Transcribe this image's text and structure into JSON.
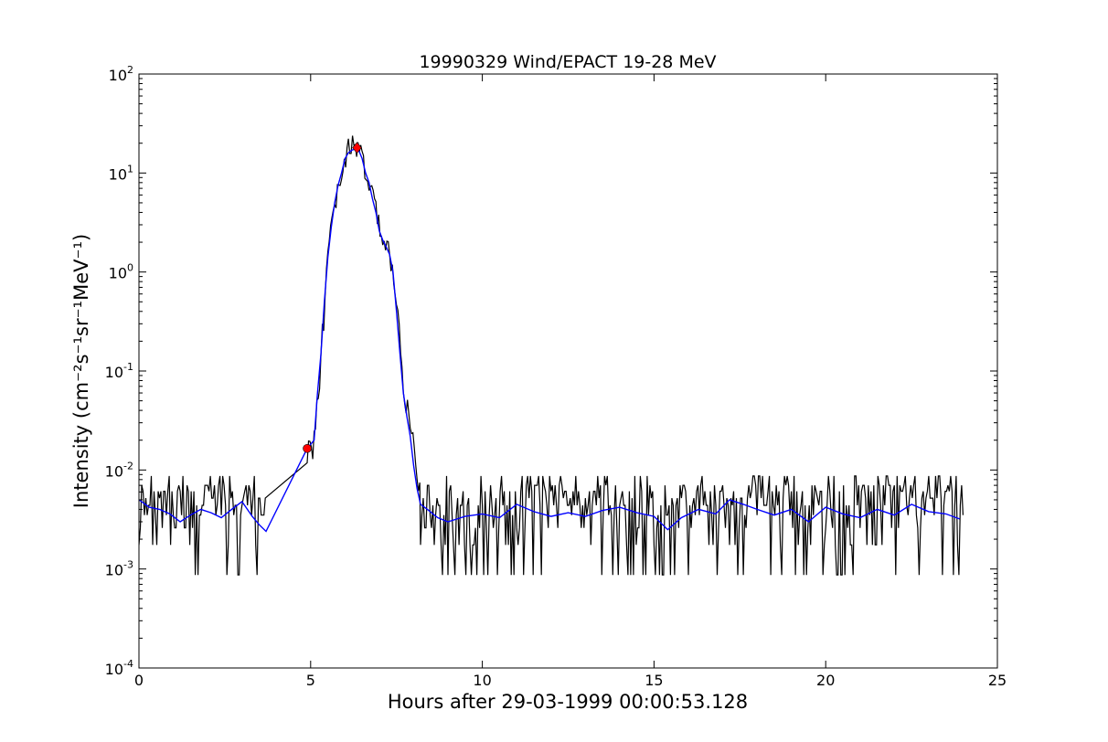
{
  "chart_data": {
    "type": "line",
    "title": "19990329 Wind/EPACT 19-28 MeV",
    "xlabel": "Hours after 29-03-1999 00:00:53.128",
    "ylabel": "Intensity (cm⁻²s⁻¹sr⁻¹MeV⁻¹)",
    "xlim": [
      0,
      25
    ],
    "ylim": [
      0.0001,
      100
    ],
    "yscale": "log",
    "grid": false,
    "x_ticks": [
      0,
      5,
      10,
      15,
      20,
      25
    ],
    "x_tick_labels": [
      "0",
      "5",
      "10",
      "15",
      "20",
      "25"
    ],
    "y_ticks": [
      0.0001,
      0.001,
      0.01,
      0.1,
      1,
      10,
      100
    ],
    "y_tick_labels": [
      {
        "base": "10",
        "exp": "-4"
      },
      {
        "base": "10",
        "exp": "-3"
      },
      {
        "base": "10",
        "exp": "-2"
      },
      {
        "base": "10",
        "exp": "-1"
      },
      {
        "base": "10",
        "exp": "0"
      },
      {
        "base": "10",
        "exp": "1"
      },
      {
        "base": "10",
        "exp": "2"
      }
    ],
    "series": [
      {
        "color": "#000000",
        "style": "raw",
        "x_range": [
          0,
          24
        ],
        "peak_envelope": [
          [
            0.0,
            0.005
          ],
          [
            1.0,
            0.004
          ],
          [
            2.0,
            0.0038
          ],
          [
            3.0,
            0.0045
          ],
          [
            3.7,
            0.0025
          ],
          [
            4.9,
            0.017
          ],
          [
            5.1,
            0.02
          ],
          [
            5.3,
            0.15
          ],
          [
            5.5,
            1.5
          ],
          [
            5.7,
            5
          ],
          [
            5.9,
            10
          ],
          [
            6.1,
            18
          ],
          [
            6.3,
            20
          ],
          [
            6.5,
            15
          ],
          [
            6.7,
            8
          ],
          [
            7.0,
            3
          ],
          [
            7.3,
            1.5
          ],
          [
            7.5,
            0.5
          ],
          [
            7.7,
            0.08
          ],
          [
            7.9,
            0.03
          ],
          [
            8.1,
            0.008
          ],
          [
            8.5,
            0.0035
          ],
          [
            10,
            0.0038
          ],
          [
            15,
            0.0036
          ],
          [
            17,
            0.0045
          ],
          [
            20,
            0.0038
          ],
          [
            24,
            0.0035
          ]
        ]
      },
      {
        "color": "#0000ff",
        "style": "smoothed",
        "points": [
          [
            0.0,
            0.005
          ],
          [
            0.3,
            0.0042
          ],
          [
            0.6,
            0.004
          ],
          [
            0.9,
            0.0036
          ],
          [
            1.2,
            0.003
          ],
          [
            1.5,
            0.0035
          ],
          [
            1.8,
            0.004
          ],
          [
            2.1,
            0.0037
          ],
          [
            2.4,
            0.0033
          ],
          [
            2.7,
            0.004
          ],
          [
            3.0,
            0.0048
          ],
          [
            3.3,
            0.0034
          ],
          [
            3.5,
            0.0028
          ],
          [
            3.7,
            0.0024
          ],
          [
            4.9,
            0.0165
          ],
          [
            5.1,
            0.02
          ],
          [
            5.2,
            0.06
          ],
          [
            5.3,
            0.15
          ],
          [
            5.4,
            0.5
          ],
          [
            5.5,
            1.4
          ],
          [
            5.6,
            2.8
          ],
          [
            5.7,
            5.0
          ],
          [
            5.8,
            7.5
          ],
          [
            5.9,
            10
          ],
          [
            6.0,
            14
          ],
          [
            6.1,
            16
          ],
          [
            6.2,
            17
          ],
          [
            6.3,
            17.5
          ],
          [
            6.4,
            17
          ],
          [
            6.5,
            14
          ],
          [
            6.6,
            10
          ],
          [
            6.7,
            8
          ],
          [
            6.8,
            5.5
          ],
          [
            6.9,
            4.0
          ],
          [
            7.0,
            2.6
          ],
          [
            7.1,
            2.1
          ],
          [
            7.2,
            1.8
          ],
          [
            7.3,
            1.5
          ],
          [
            7.4,
            1.0
          ],
          [
            7.5,
            0.4
          ],
          [
            7.6,
            0.15
          ],
          [
            7.7,
            0.06
          ],
          [
            7.8,
            0.035
          ],
          [
            7.9,
            0.022
          ],
          [
            8.0,
            0.011
          ],
          [
            8.1,
            0.0065
          ],
          [
            8.2,
            0.0045
          ],
          [
            8.4,
            0.004
          ],
          [
            8.7,
            0.0033
          ],
          [
            9.0,
            0.003
          ],
          [
            9.5,
            0.0034
          ],
          [
            10.0,
            0.0036
          ],
          [
            10.5,
            0.0033
          ],
          [
            11.0,
            0.0045
          ],
          [
            11.5,
            0.0038
          ],
          [
            12.0,
            0.0034
          ],
          [
            12.5,
            0.0037
          ],
          [
            13.0,
            0.0034
          ],
          [
            13.5,
            0.0039
          ],
          [
            14.0,
            0.0042
          ],
          [
            14.5,
            0.0037
          ],
          [
            15.0,
            0.0034
          ],
          [
            15.4,
            0.0025
          ],
          [
            15.8,
            0.0033
          ],
          [
            16.3,
            0.004
          ],
          [
            16.8,
            0.0036
          ],
          [
            17.2,
            0.005
          ],
          [
            17.6,
            0.0045
          ],
          [
            18.0,
            0.004
          ],
          [
            18.5,
            0.0035
          ],
          [
            19.0,
            0.004
          ],
          [
            19.5,
            0.003
          ],
          [
            20.0,
            0.0042
          ],
          [
            20.5,
            0.0036
          ],
          [
            21.0,
            0.0033
          ],
          [
            21.5,
            0.004
          ],
          [
            22.0,
            0.0035
          ],
          [
            22.5,
            0.0045
          ],
          [
            23.0,
            0.0038
          ],
          [
            23.5,
            0.0036
          ],
          [
            23.9,
            0.0032
          ]
        ]
      }
    ],
    "markers": [
      {
        "shape": "circle",
        "color": "#ff0000",
        "x": 4.9,
        "y": 0.0165
      },
      {
        "shape": "diamond",
        "color": "#ff0000",
        "x": 6.35,
        "y": 18
      }
    ]
  }
}
